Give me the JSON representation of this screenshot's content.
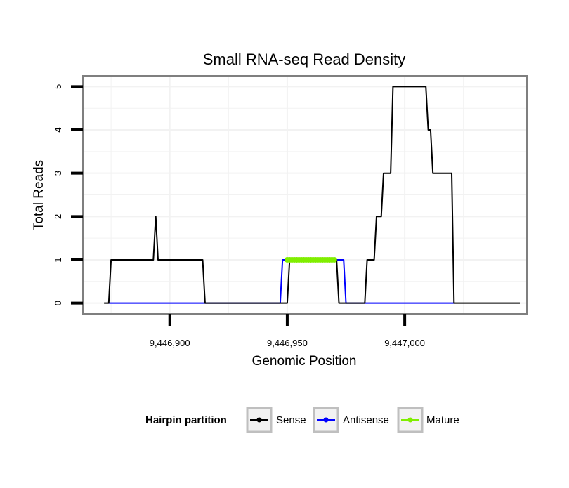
{
  "chart_data": {
    "type": "line",
    "title": "Small RNA-seq Read Density",
    "xlabel": "Genomic Position",
    "ylabel": "Total Reads",
    "xlim": [
      9446863,
      9447052
    ],
    "ylim": [
      -0.25,
      5.25
    ],
    "x_ticks": [
      9446900,
      9446950,
      9447000
    ],
    "x_tick_labels": [
      "9,446,900",
      "9,446,950",
      "9,447,000"
    ],
    "y_ticks": [
      0,
      1,
      2,
      3,
      4,
      5
    ],
    "y_tick_labels": [
      "0",
      "1",
      "2",
      "3",
      "4",
      "5"
    ],
    "grid": true,
    "legend": {
      "title": "Hairpin partition",
      "position": "bottom",
      "entries": [
        "Sense",
        "Antisense",
        "Mature"
      ]
    },
    "series": [
      {
        "name": "Sense",
        "color": "#000000",
        "x": [
          9446872,
          9446874,
          9446875,
          9446893,
          9446894,
          9446895,
          9446896,
          9446914,
          9446915,
          9446950,
          9446951,
          9446971,
          9446972,
          9446983,
          9446984,
          9446987,
          9446988,
          9446990,
          9446991,
          9446994,
          9446995,
          9447009,
          9447010,
          9447011,
          9447012,
          9447020,
          9447021,
          9447049
        ],
        "y": [
          0,
          0,
          1,
          1,
          2,
          1,
          1,
          1,
          0,
          0,
          1,
          1,
          0,
          0,
          1,
          1,
          2,
          2,
          3,
          3,
          5,
          5,
          4,
          4,
          3,
          3,
          0,
          0
        ]
      },
      {
        "name": "Antisense",
        "color": "#0000ff",
        "x": [
          9446874,
          9446947,
          9446948,
          9446974,
          9446975,
          9447021
        ],
        "y": [
          0,
          0,
          1,
          1,
          0,
          0
        ]
      },
      {
        "name": "Mature",
        "color": "#80ee00",
        "x": [
          9446950,
          9446970
        ],
        "y": [
          1,
          1
        ]
      }
    ]
  }
}
